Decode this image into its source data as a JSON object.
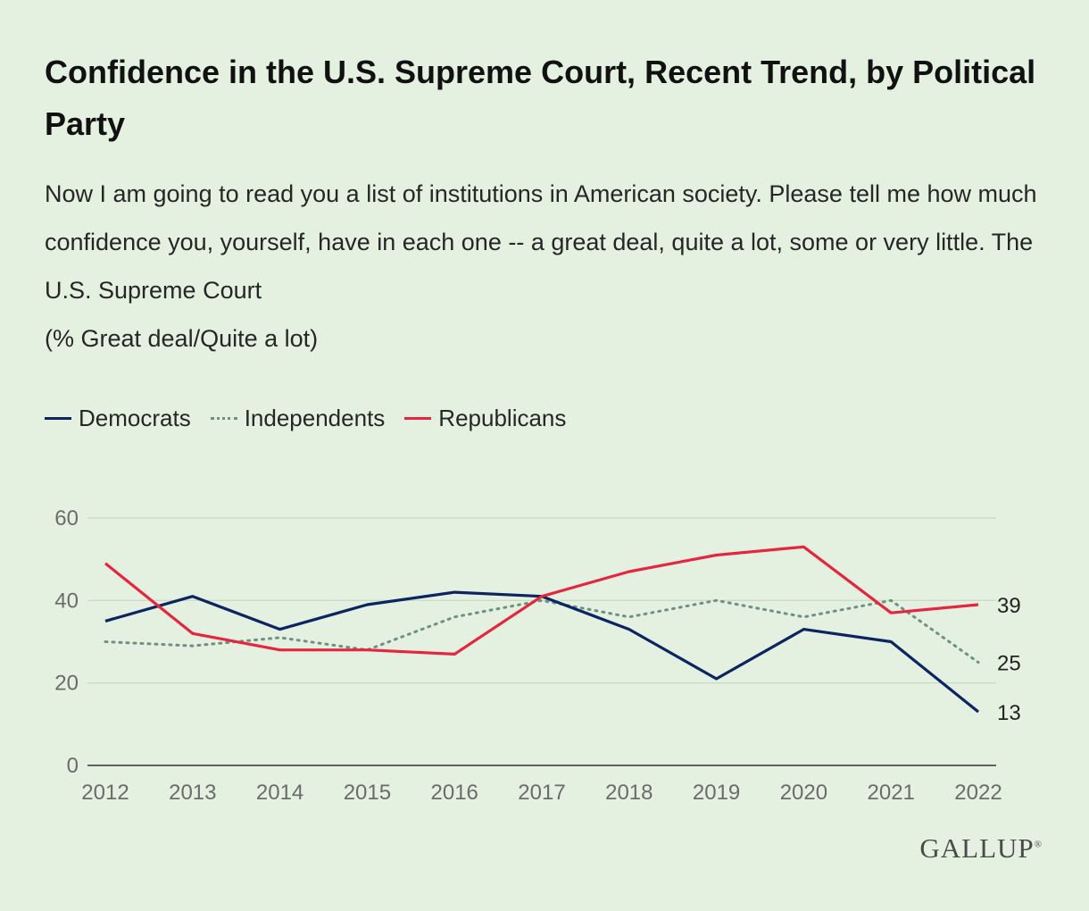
{
  "chart_data": {
    "type": "line",
    "title": "Confidence in the U.S. Supreme Court, Recent Trend, by Political Party",
    "subtitle": "Now I am going to read you a list of institutions in American society. Please tell me how much confidence you, yourself, have in each one -- a great deal, quite a lot, some or very little. The U.S. Supreme Court",
    "note": "(% Great deal/Quite a lot)",
    "x": [
      "2012",
      "2013",
      "2014",
      "2015",
      "2016",
      "2017",
      "2018",
      "2019",
      "2020",
      "2021",
      "2022"
    ],
    "ylim": [
      0,
      60
    ],
    "yticks": [
      "0",
      "20",
      "40",
      "60"
    ],
    "grid": true,
    "legend_position": "top-left",
    "series": [
      {
        "name": "Democrats",
        "values": [
          35,
          41,
          33,
          39,
          42,
          41,
          33,
          21,
          33,
          30,
          13
        ],
        "color": "#0c2461",
        "style": "solid",
        "end_label": "13"
      },
      {
        "name": "Independents",
        "values": [
          30,
          29,
          31,
          28,
          36,
          40,
          36,
          40,
          36,
          40,
          25
        ],
        "color": "#6e9185",
        "style": "dotted",
        "end_label": "25"
      },
      {
        "name": "Republicans",
        "values": [
          49,
          32,
          28,
          28,
          27,
          41,
          47,
          51,
          53,
          37,
          39
        ],
        "color": "#e6263e",
        "style": "solid",
        "end_label": "39"
      }
    ]
  },
  "branding": {
    "logo_text": "GALLUP",
    "logo_mark": "®"
  }
}
